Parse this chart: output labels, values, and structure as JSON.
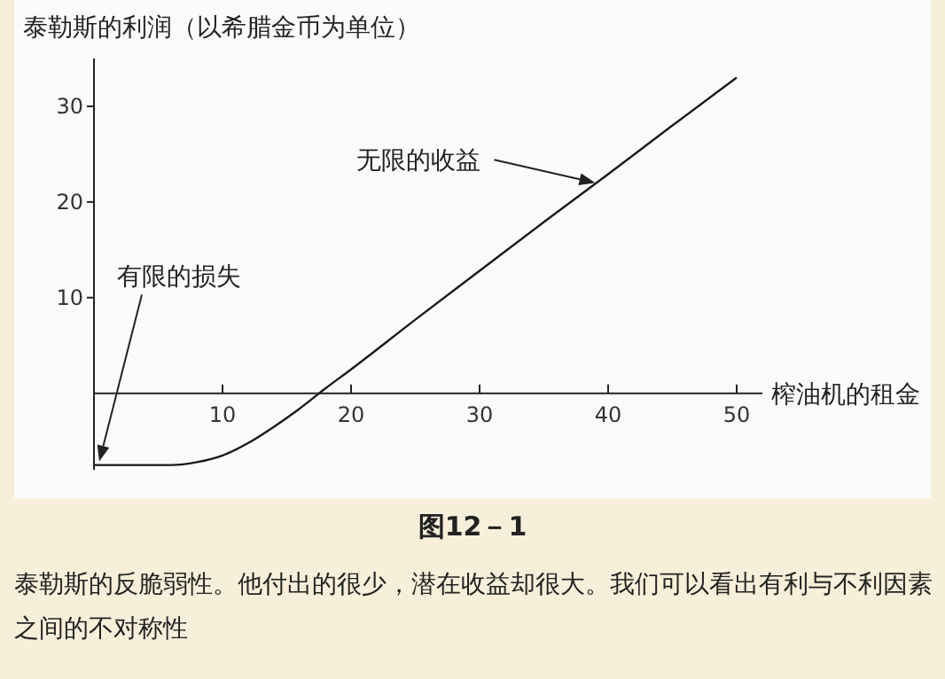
{
  "chart_data": {
    "type": "line",
    "ylabel": "泰勒斯的利润（以希腊金币为单位）",
    "xlabel": "榨油机的租金",
    "x": [
      0,
      3,
      6,
      8,
      10,
      12,
      14,
      16,
      18,
      20,
      25,
      30,
      35,
      40,
      45,
      50
    ],
    "series": [
      {
        "color": "#1a1a1a",
        "values": [
          -7.5,
          -7.5,
          -7.5,
          -7.2,
          -6.5,
          -5.2,
          -3.5,
          -1.6,
          0.5,
          2.5,
          7.7,
          12.8,
          17.9,
          22.9,
          28,
          33
        ]
      }
    ],
    "xlim": [
      0,
      52
    ],
    "ylim": [
      -8,
      35
    ],
    "xticks": [
      10,
      20,
      30,
      40,
      50
    ],
    "yticks": [
      10,
      20,
      30
    ],
    "grid": false,
    "legend": false,
    "marker": "none",
    "line_style": "solid",
    "annotations": [
      {
        "text": "无限的收益",
        "x": 39,
        "y": 22
      },
      "有限的损失",
      "图12－1",
      "泰勒斯的反脆弱性。他付出的很少，潜在收益却很大。我们可以看出有利与不利因素之间的不对称性"
    ]
  }
}
